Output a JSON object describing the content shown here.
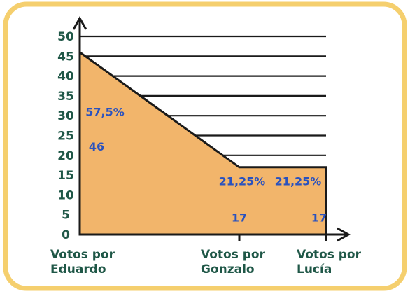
{
  "chart_data": {
    "type": "area",
    "categories": [
      "Votos por Eduardo",
      "Votos por Gonzalo",
      "Votos por Lucía"
    ],
    "category_lines": [
      [
        "Votos por",
        "Eduardo"
      ],
      [
        "Votos por",
        "Gonzalo"
      ],
      [
        "Votos por",
        "Lucía"
      ]
    ],
    "values": [
      46,
      17,
      17
    ],
    "value_labels": [
      "46",
      "17",
      "17"
    ],
    "percent_labels": [
      "57,5%",
      "21,25%",
      "21,25%"
    ],
    "y_ticks": [
      "0",
      "5",
      "10",
      "15",
      "20",
      "25",
      "30",
      "35",
      "40",
      "45",
      "50"
    ],
    "ylim": [
      0,
      50
    ],
    "grid": true,
    "title": "",
    "xlabel": "",
    "ylabel": ""
  },
  "colors": {
    "frame": "#f5cf6e",
    "fill": "#f2b56b",
    "axis": "#1a1a1a",
    "tick_text": "#1f5747",
    "data_label": "#2a52be"
  }
}
